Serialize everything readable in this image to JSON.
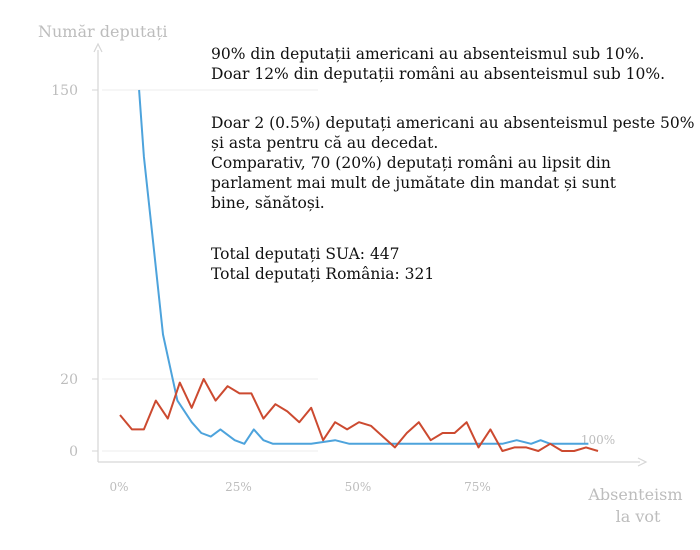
{
  "chart_data": {
    "type": "line",
    "ylabel": "Număr deputați",
    "xlabel": "Absenteism la vot",
    "xlabel_lines": [
      "Absenteism",
      "la vot"
    ],
    "x_ticks": [
      {
        "value": 0,
        "label": "0%"
      },
      {
        "value": 25,
        "label": "25%"
      },
      {
        "value": 50,
        "label": "50%"
      },
      {
        "value": 75,
        "label": "75%"
      }
    ],
    "x_end_label": {
      "value": 100,
      "label": "100%"
    },
    "y_ticks": [
      {
        "value": 0,
        "label": "0"
      },
      {
        "value": 20,
        "label": "20"
      },
      {
        "value": 150,
        "label": "150"
      }
    ],
    "grid": true,
    "series": [
      {
        "key": "usa",
        "color": "#4da3dc",
        "x": [
          4,
          5,
          7,
          9,
          12,
          15,
          17,
          19,
          21,
          24,
          26,
          28,
          30,
          32,
          35,
          40,
          45,
          48,
          50,
          55,
          60,
          65,
          70,
          75,
          80,
          83,
          86,
          88,
          90,
          95,
          98
        ],
        "y": [
          150,
          120,
          80,
          40,
          14,
          8,
          5,
          4,
          6,
          3,
          2,
          6,
          3,
          2,
          2,
          2,
          3,
          2,
          2,
          2,
          2,
          2,
          2,
          2,
          2,
          3,
          2,
          3,
          2,
          2,
          2
        ]
      },
      {
        "key": "romania",
        "color": "#cc4a30",
        "x": [
          0,
          2.5,
          5,
          7.5,
          10,
          12.5,
          15,
          17.5,
          20,
          22.5,
          25,
          27.5,
          30,
          32.5,
          35,
          37.5,
          40,
          42.5,
          45,
          47.5,
          50,
          52.5,
          55,
          57.5,
          60,
          62.5,
          65,
          67.5,
          70,
          72.5,
          75,
          77.5,
          80,
          82.5,
          85,
          87.5,
          90,
          92.5,
          95,
          97.5,
          100
        ],
        "y": [
          10,
          6,
          6,
          14,
          9,
          19,
          12,
          20,
          14,
          18,
          16,
          16,
          9,
          13,
          11,
          8,
          12,
          3,
          8,
          6,
          8,
          7,
          4,
          1,
          5,
          8,
          3,
          5,
          5,
          8,
          1,
          6,
          0,
          1,
          1,
          0,
          2,
          0,
          0,
          1,
          0
        ]
      }
    ],
    "annotations": [
      [
        "90% din deputații americani au absenteismul sub 10%.",
        "Doar 12% din deputații români au absenteismul sub 10%."
      ],
      [
        "Doar 2 (0.5%) deputați americani au absenteismul peste 50%",
        "și asta pentru că au decedat.",
        "Comparativ, 70 (20%) deputați români au lipsit din",
        "parlament mai mult de jumătate din mandat și sunt",
        "bine, sănătoși."
      ],
      [
        "Total deputați SUA: 447",
        "Total deputați România: 321"
      ]
    ]
  }
}
